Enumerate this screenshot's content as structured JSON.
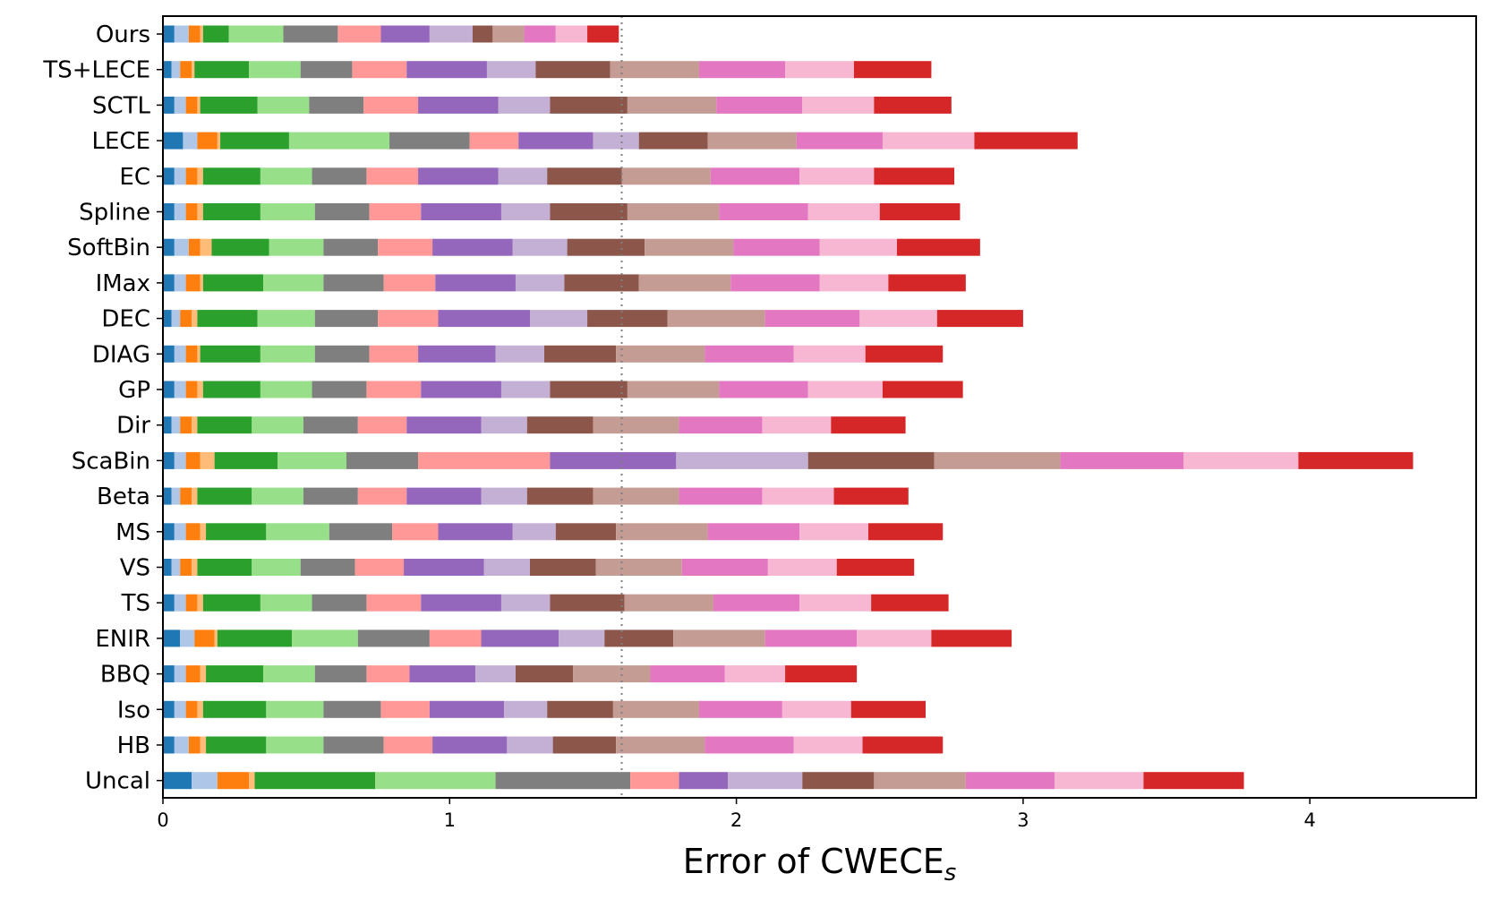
{
  "chart_data": {
    "type": "bar",
    "orientation": "horizontal",
    "stacked": true,
    "title": "",
    "xlabel": "Error of CWECE",
    "xlabel_subscript": "s",
    "ylabel": "",
    "xlim": [
      0,
      4.58
    ],
    "x_ticks": [
      0,
      1,
      2,
      3,
      4
    ],
    "reference_line": {
      "x": 1.6,
      "style": "dotted",
      "color": "#808080"
    },
    "grid": false,
    "segment_colors": [
      "#1f77b4",
      "#aec7e8",
      "#ff7f0e",
      "#ffbb78",
      "#2ca02c",
      "#98df8a",
      "#7f7f7f",
      "#ff9896",
      "#9467bd",
      "#c5b0d5",
      "#8c564b",
      "#c49c94",
      "#e377c2",
      "#f7b6d2",
      "#d62728"
    ],
    "categories": [
      "Ours",
      "TS+LECE",
      "SCTL",
      "LECE",
      "EC",
      "Spline",
      "SoftBin",
      "IMax",
      "DEC",
      "DIAG",
      "GP",
      "Dir",
      "ScaBin",
      "Beta",
      "MS",
      "VS",
      "TS",
      "ENIR",
      "BBQ",
      "Iso",
      "HB",
      "Uncal"
    ],
    "segments": [
      [
        0.04,
        0.05,
        0.04,
        0.01,
        0.09,
        0.19,
        0.19,
        0.15,
        0.17,
        0.15,
        0.07,
        0.11,
        0.11,
        0.11,
        0.11
      ],
      [
        0.03,
        0.03,
        0.04,
        0.01,
        0.19,
        0.18,
        0.18,
        0.19,
        0.28,
        0.17,
        0.26,
        0.31,
        0.3,
        0.24,
        0.27
      ],
      [
        0.04,
        0.04,
        0.04,
        0.01,
        0.2,
        0.18,
        0.19,
        0.19,
        0.28,
        0.18,
        0.27,
        0.31,
        0.3,
        0.25,
        0.27
      ],
      [
        0.07,
        0.05,
        0.07,
        0.01,
        0.24,
        0.35,
        0.28,
        0.17,
        0.26,
        0.16,
        0.24,
        0.31,
        0.3,
        0.32,
        0.36
      ],
      [
        0.04,
        0.04,
        0.04,
        0.02,
        0.2,
        0.18,
        0.19,
        0.18,
        0.28,
        0.17,
        0.26,
        0.31,
        0.31,
        0.26,
        0.28
      ],
      [
        0.04,
        0.04,
        0.04,
        0.02,
        0.2,
        0.19,
        0.19,
        0.18,
        0.28,
        0.17,
        0.27,
        0.32,
        0.31,
        0.25,
        0.28
      ],
      [
        0.04,
        0.05,
        0.04,
        0.04,
        0.2,
        0.19,
        0.19,
        0.19,
        0.28,
        0.19,
        0.27,
        0.31,
        0.3,
        0.27,
        0.29
      ],
      [
        0.04,
        0.04,
        0.05,
        0.01,
        0.21,
        0.21,
        0.21,
        0.18,
        0.28,
        0.17,
        0.26,
        0.32,
        0.31,
        0.24,
        0.27
      ],
      [
        0.03,
        0.03,
        0.04,
        0.02,
        0.21,
        0.2,
        0.22,
        0.21,
        0.32,
        0.2,
        0.28,
        0.34,
        0.33,
        0.27,
        0.3
      ],
      [
        0.04,
        0.04,
        0.04,
        0.01,
        0.21,
        0.19,
        0.19,
        0.17,
        0.27,
        0.17,
        0.25,
        0.31,
        0.31,
        0.25,
        0.27
      ],
      [
        0.04,
        0.04,
        0.04,
        0.02,
        0.2,
        0.18,
        0.19,
        0.19,
        0.28,
        0.17,
        0.27,
        0.32,
        0.31,
        0.26,
        0.28
      ],
      [
        0.03,
        0.03,
        0.04,
        0.02,
        0.19,
        0.18,
        0.19,
        0.17,
        0.26,
        0.16,
        0.23,
        0.3,
        0.29,
        0.24,
        0.26
      ],
      [
        0.04,
        0.04,
        0.05,
        0.05,
        0.22,
        0.24,
        0.25,
        0.46,
        0.44,
        0.46,
        0.44,
        0.44,
        0.43,
        0.4,
        0.4
      ],
      [
        0.03,
        0.03,
        0.04,
        0.02,
        0.19,
        0.18,
        0.19,
        0.17,
        0.26,
        0.16,
        0.23,
        0.3,
        0.29,
        0.25,
        0.26
      ],
      [
        0.04,
        0.04,
        0.05,
        0.02,
        0.21,
        0.22,
        0.22,
        0.16,
        0.26,
        0.15,
        0.21,
        0.32,
        0.32,
        0.24,
        0.26
      ],
      [
        0.03,
        0.03,
        0.04,
        0.02,
        0.19,
        0.17,
        0.19,
        0.17,
        0.28,
        0.16,
        0.23,
        0.3,
        0.3,
        0.24,
        0.27
      ],
      [
        0.04,
        0.04,
        0.04,
        0.02,
        0.2,
        0.18,
        0.19,
        0.19,
        0.28,
        0.17,
        0.26,
        0.31,
        0.3,
        0.25,
        0.27
      ],
      [
        0.06,
        0.05,
        0.07,
        0.01,
        0.26,
        0.23,
        0.25,
        0.18,
        0.27,
        0.16,
        0.24,
        0.32,
        0.32,
        0.26,
        0.28
      ],
      [
        0.04,
        0.04,
        0.05,
        0.02,
        0.2,
        0.18,
        0.18,
        0.15,
        0.23,
        0.14,
        0.2,
        0.27,
        0.26,
        0.21,
        0.25
      ],
      [
        0.04,
        0.04,
        0.04,
        0.02,
        0.22,
        0.2,
        0.2,
        0.17,
        0.26,
        0.15,
        0.23,
        0.3,
        0.29,
        0.24,
        0.26
      ],
      [
        0.04,
        0.05,
        0.04,
        0.02,
        0.21,
        0.2,
        0.21,
        0.17,
        0.26,
        0.16,
        0.22,
        0.31,
        0.31,
        0.24,
        0.28
      ],
      [
        0.1,
        0.09,
        0.11,
        0.02,
        0.42,
        0.42,
        0.47,
        0.17,
        0.17,
        0.26,
        0.25,
        0.32,
        0.31,
        0.31,
        0.35
      ]
    ],
    "totals": [
      1.6,
      2.68,
      2.77,
      3.19,
      2.78,
      2.81,
      2.85,
      2.8,
      3.01,
      2.7,
      2.78,
      2.59,
      4.35,
      2.6,
      2.72,
      2.62,
      2.75,
      2.95,
      2.44,
      2.67,
      2.73,
      3.77
    ]
  }
}
